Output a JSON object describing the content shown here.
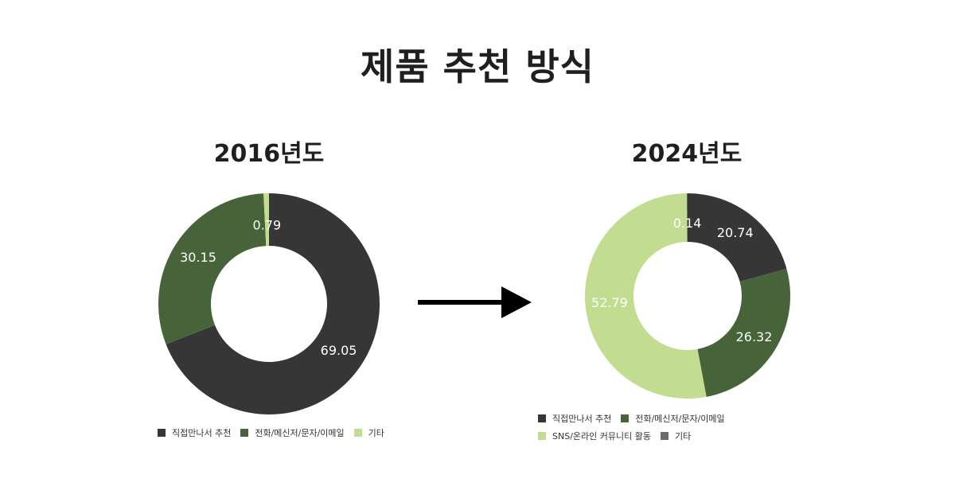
{
  "page": {
    "title": "제품 추천 방식"
  },
  "colors": {
    "dark": "#363636",
    "green": "#47633a",
    "light": "#c2dc90",
    "gray": "#6b6b6b"
  },
  "chart_data": [
    {
      "type": "pie",
      "title": "2016년도",
      "donut": true,
      "legend_position": "bottom",
      "categories": [
        "직접만나서 추천",
        "전화/메신저/문자/이메일",
        "기타"
      ],
      "values": [
        69.05,
        30.15,
        0.79
      ],
      "colors": [
        "#363636",
        "#47633a",
        "#c2dc90"
      ],
      "value_labels": [
        "69.05",
        "30.15",
        "0.79"
      ]
    },
    {
      "type": "pie",
      "title": "2024년도",
      "donut": true,
      "legend_position": "bottom",
      "categories": [
        "직접만나서 추천",
        "전화/메신저/문자/이메일",
        "SNS/온라인 커뮤니티 활동",
        "기타"
      ],
      "values": [
        20.74,
        26.32,
        52.79,
        0.14
      ],
      "colors": [
        "#363636",
        "#47633a",
        "#c2dc90",
        "#6b6b6b"
      ],
      "value_labels": [
        "20.74",
        "26.32",
        "52.79",
        "0.14"
      ]
    }
  ]
}
